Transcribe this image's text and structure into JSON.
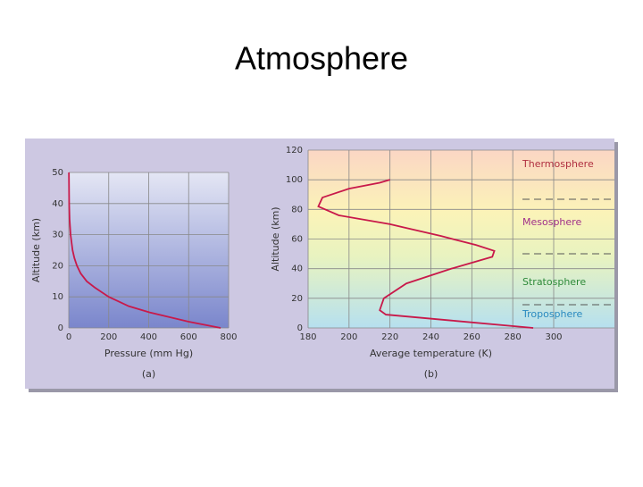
{
  "title": "Atmosphere",
  "chart_data": [
    {
      "type": "line",
      "caption": "(a)",
      "x_label": "Pressure (mm Hg)",
      "y_label": "Altitude (km)",
      "x": [
        760,
        600,
        405,
        300,
        200,
        130,
        90,
        60,
        41,
        28,
        19,
        9,
        4,
        2,
        0.8
      ],
      "series": [
        {
          "color": "#c8194a",
          "values": [
            0,
            2,
            5,
            7,
            10,
            13,
            15,
            17.5,
            20,
            22.5,
            25,
            30,
            35,
            40,
            50
          ]
        }
      ],
      "xlim": [
        0,
        800
      ],
      "ylim": [
        0,
        50
      ],
      "xticks": [
        0,
        200,
        400,
        600,
        800
      ],
      "yticks": [
        0,
        10,
        20,
        30,
        40,
        50
      ],
      "grid": true
    },
    {
      "type": "line",
      "caption": "(b)",
      "x_label": "Average temperature (K)",
      "y_label": "Altitude (km)",
      "x": [
        290,
        250,
        218,
        215,
        217,
        228,
        250,
        270,
        271,
        262,
        245,
        220,
        195,
        185,
        187,
        200,
        215,
        220
      ],
      "series": [
        {
          "color": "#c8194a",
          "values": [
            0,
            5,
            9,
            12,
            20,
            30,
            40,
            48,
            52,
            56,
            62,
            70,
            76,
            82,
            88,
            94,
            98,
            100
          ]
        }
      ],
      "xlim": [
        180,
        300
      ],
      "ylim": [
        0,
        120
      ],
      "xticks": [
        180,
        200,
        220,
        240,
        260,
        280,
        300
      ],
      "yticks": [
        0,
        20,
        40,
        60,
        80,
        100,
        120
      ],
      "grid": true,
      "annotations": [
        {
          "text": "Thermosphere",
          "color": "#b03040"
        },
        {
          "text": "Mesosphere",
          "color": "#a0308a"
        },
        {
          "text": "Stratosphere",
          "color": "#2e8a3a"
        },
        {
          "text": "Troposphere",
          "color": "#2a8ac0"
        }
      ]
    }
  ]
}
